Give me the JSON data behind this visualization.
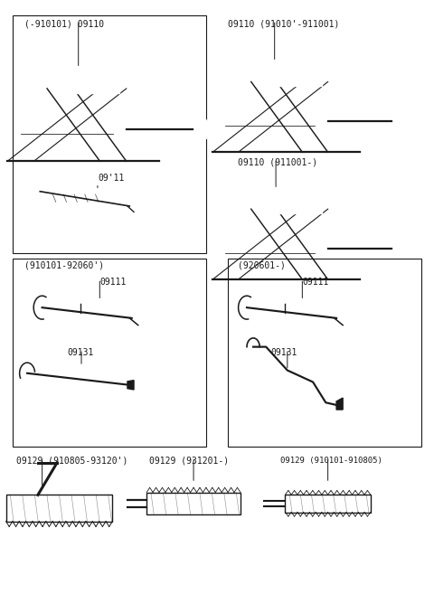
{
  "bg_color": "#ffffff",
  "line_color": "#1a1a1a",
  "text_color": "#1a1a1a",
  "font_size": 7,
  "sections": {
    "top_left_label": "(-910101) 09110",
    "top_left_sub_label": "09'11",
    "top_right_label1": "09110 (91010'-911001)",
    "top_right_label2": "09110 (911001-)",
    "mid_left_label": "(910101-92060')",
    "mid_left_part1": "09111",
    "mid_left_part2": "09131",
    "mid_right_label": "(920601-)",
    "mid_right_part1": "09111",
    "mid_right_part2": "09131",
    "bot_left_label": "09129 (910805-93120')",
    "bot_mid_label": "09129 (931201-)",
    "bot_right_label": "09129 (910101-910805)"
  }
}
